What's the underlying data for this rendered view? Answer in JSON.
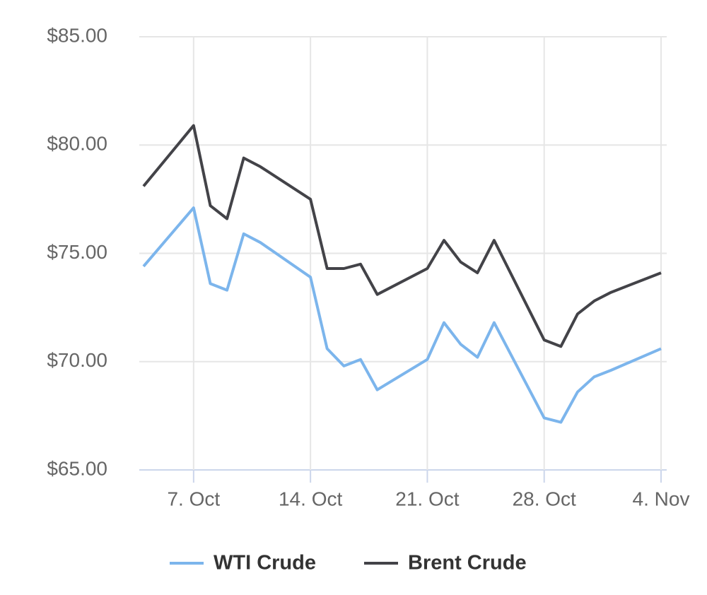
{
  "chart_data": {
    "type": "line",
    "x": [
      "4. Oct",
      "7. Oct",
      "8. Oct",
      "9. Oct",
      "10. Oct",
      "11. Oct",
      "14. Oct",
      "15. Oct",
      "16. Oct",
      "17. Oct",
      "18. Oct",
      "21. Oct",
      "22. Oct",
      "23. Oct",
      "24. Oct",
      "25. Oct",
      "28. Oct",
      "29. Oct",
      "30. Oct",
      "31. Oct",
      "1. Nov",
      "4. Nov"
    ],
    "series": [
      {
        "name": "WTI Crude",
        "color": "#7cb5ec",
        "values": [
          74.4,
          77.1,
          73.6,
          73.3,
          75.9,
          75.5,
          73.9,
          70.6,
          69.8,
          70.1,
          68.7,
          70.1,
          71.8,
          70.8,
          70.2,
          71.8,
          67.4,
          67.2,
          68.6,
          69.3,
          69.6,
          70.6
        ]
      },
      {
        "name": "Brent Crude",
        "color": "#434348",
        "values": [
          78.1,
          80.9,
          77.2,
          76.6,
          79.4,
          79.0,
          77.5,
          74.3,
          74.3,
          74.5,
          73.1,
          74.3,
          75.6,
          74.6,
          74.1,
          75.6,
          71.0,
          70.7,
          72.2,
          72.8,
          73.2,
          74.1
        ]
      }
    ],
    "xlim": [
      "4. Oct",
      "4. Nov"
    ],
    "xticks": [
      "7. Oct",
      "14. Oct",
      "21. Oct",
      "28. Oct",
      "4. Nov"
    ],
    "ylim": [
      65,
      85
    ],
    "yticks": [
      {
        "value": 65,
        "label": "$65.00"
      },
      {
        "value": 70,
        "label": "$70.00"
      },
      {
        "value": 75,
        "label": "$75.00"
      },
      {
        "value": 80,
        "label": "$80.00"
      },
      {
        "value": 85,
        "label": "$85.00"
      }
    ],
    "grid": true,
    "legend": "bottom"
  }
}
